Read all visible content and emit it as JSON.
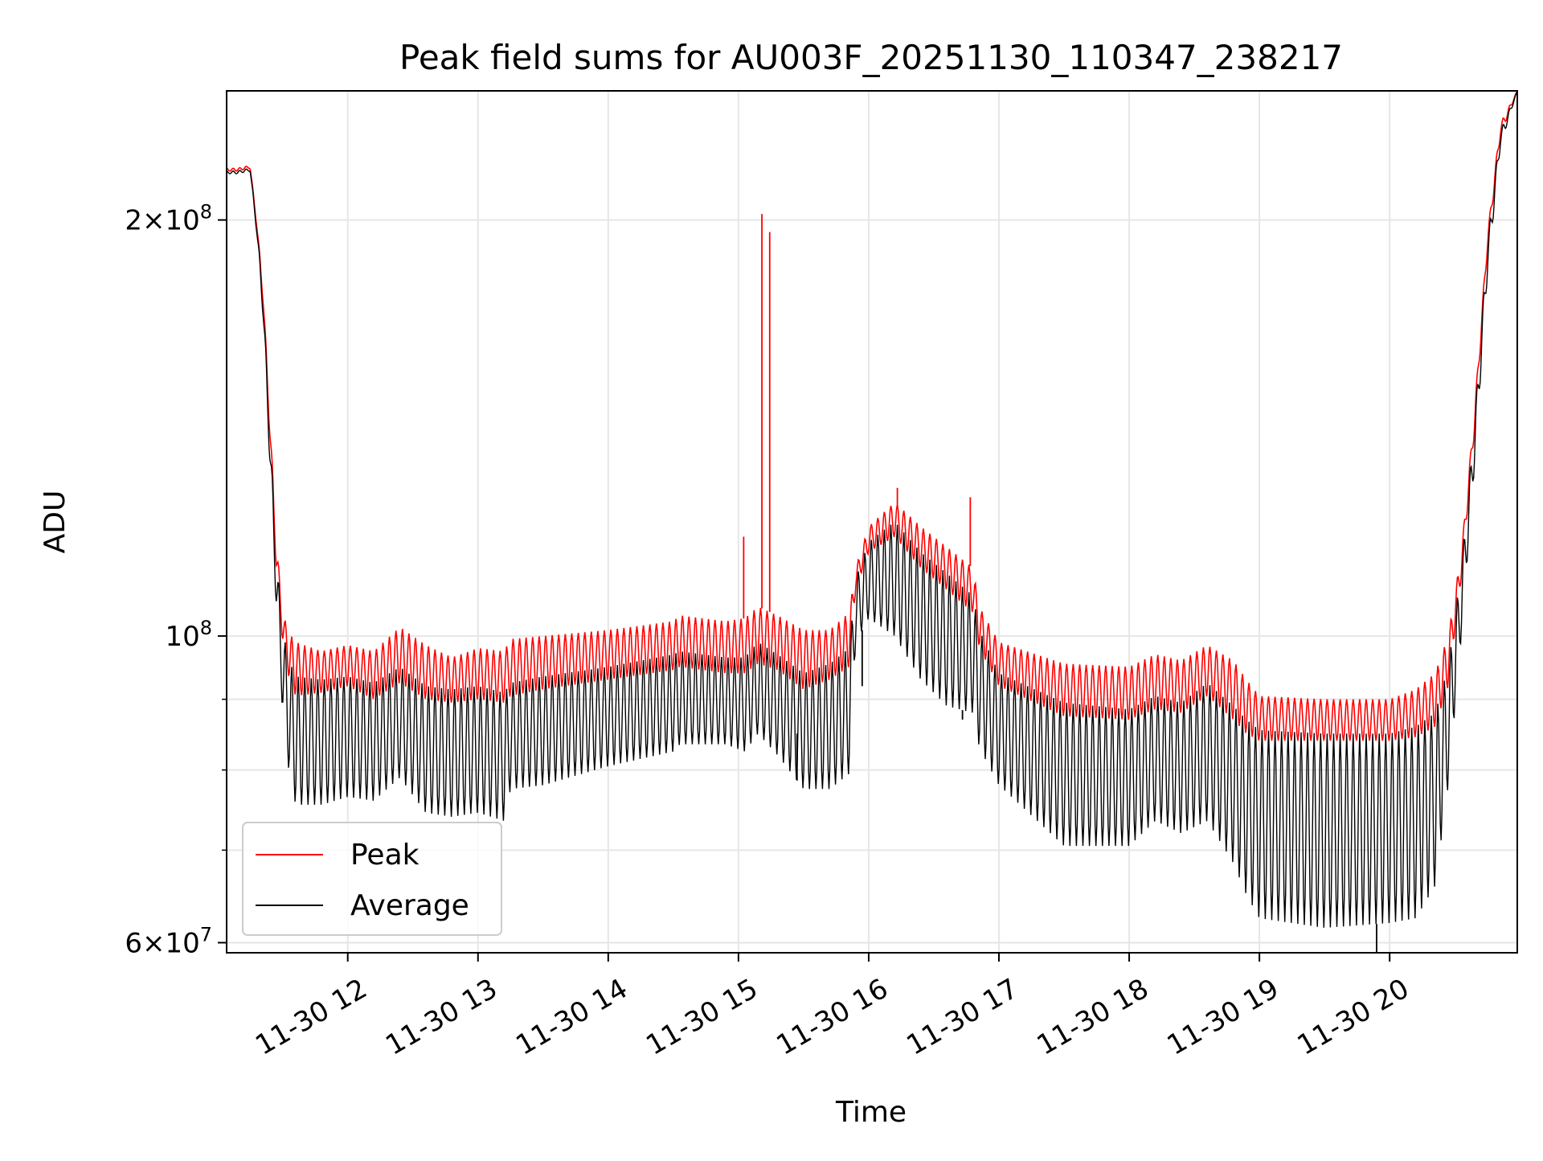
{
  "chart_data": {
    "type": "line",
    "title": "Peak field sums for AU003F_20251130_110347_238217",
    "xlabel": "Time",
    "ylabel": "ADU",
    "yscale": "log",
    "grid": true,
    "legend_position": "lower-left",
    "xlim": [
      11.07,
      20.98
    ],
    "ylim": [
      59000000,
      248000000
    ],
    "x_unit": "hours on 2025-11-30",
    "xticks": [
      {
        "value": 12,
        "label": "11-30 12"
      },
      {
        "value": 13,
        "label": "11-30 13"
      },
      {
        "value": 14,
        "label": "11-30 14"
      },
      {
        "value": 15,
        "label": "11-30 15"
      },
      {
        "value": 16,
        "label": "11-30 16"
      },
      {
        "value": 17,
        "label": "11-30 17"
      },
      {
        "value": 18,
        "label": "11-30 18"
      },
      {
        "value": 19,
        "label": "11-30 19"
      },
      {
        "value": 20,
        "label": "11-30 20"
      }
    ],
    "yticks_major": [
      {
        "value": 60000000,
        "base": "6×10",
        "exp": "7"
      },
      {
        "value": 100000000,
        "base": "10",
        "exp": "8"
      },
      {
        "value": 200000000,
        "base": "2×10",
        "exp": "8"
      }
    ],
    "yticks_minor": [
      70000000,
      80000000,
      90000000
    ],
    "series": [
      {
        "name": "Peak",
        "color": "#ff0000",
        "period_hours": 0.05,
        "envelope": {
          "x": [
            11.07,
            11.15,
            11.25,
            11.3,
            11.35,
            11.4,
            11.45,
            11.5,
            11.55,
            11.6,
            11.8,
            12.0,
            12.2,
            12.4,
            12.6,
            12.8,
            13.0,
            13.2,
            13.25,
            13.5,
            14.0,
            14.5,
            14.55,
            14.9,
            15.05,
            15.15,
            15.3,
            15.5,
            15.7,
            15.85,
            15.9,
            16.0,
            16.2,
            16.4,
            16.6,
            16.8,
            16.85,
            17.0,
            17.5,
            18.0,
            18.2,
            18.4,
            18.6,
            18.8,
            18.9,
            19.0,
            19.5,
            20.0,
            20.2,
            20.35,
            20.45,
            20.55,
            20.65,
            20.75,
            20.85,
            20.98
          ],
          "high": [
            218000000,
            218000000,
            219000000,
            200000000,
            178000000,
            145000000,
            118000000,
            104000000,
            100500000,
            99000000,
            97500000,
            98500000,
            97500000,
            101500000,
            98500000,
            96500000,
            98000000,
            97500000,
            99500000,
            100000000,
            101000000,
            102500000,
            103500000,
            102500000,
            103000000,
            105000000,
            103500000,
            101000000,
            101000000,
            104000000,
            112000000,
            120000000,
            125000000,
            120000000,
            116000000,
            112000000,
            105000000,
            99000000,
            95500000,
            95000000,
            97000000,
            96000000,
            98500000,
            96000000,
            93000000,
            90500000,
            90000000,
            90000000,
            91500000,
            94000000,
            100000000,
            115000000,
            145000000,
            195000000,
            235000000,
            248000000
          ],
          "low": [
            217000000,
            217000000,
            218000000,
            198000000,
            174000000,
            140000000,
            112000000,
            99000000,
            93000000,
            90500000,
            91000000,
            92000000,
            90000000,
            92500000,
            90000000,
            89500000,
            90000000,
            89500000,
            90500000,
            91500000,
            93000000,
            94500000,
            95000000,
            94000000,
            94000000,
            95500000,
            94500000,
            91500000,
            93000000,
            95000000,
            108000000,
            115000000,
            118000000,
            112000000,
            108000000,
            104000000,
            98000000,
            92000000,
            87500000,
            87000000,
            88500000,
            88000000,
            90500000,
            87000000,
            85000000,
            84000000,
            84000000,
            84000000,
            84500000,
            86000000,
            92000000,
            110000000,
            140000000,
            190000000,
            230000000,
            248000000
          ]
        },
        "spikes": [
          {
            "x": 15.04,
            "y": 118000000
          },
          {
            "x": 15.18,
            "y": 202000000
          },
          {
            "x": 15.24,
            "y": 196000000
          },
          {
            "x": 16.22,
            "y": 128000000
          },
          {
            "x": 16.78,
            "y": 126000000
          }
        ]
      },
      {
        "name": "Average",
        "color": "#000000",
        "period_hours": 0.05,
        "envelope": {
          "x": [
            11.07,
            11.15,
            11.25,
            11.3,
            11.35,
            11.4,
            11.45,
            11.5,
            11.55,
            11.6,
            11.8,
            12.0,
            12.2,
            12.4,
            12.6,
            12.8,
            13.0,
            13.2,
            13.25,
            13.5,
            14.0,
            14.5,
            14.55,
            14.9,
            15.05,
            15.15,
            15.3,
            15.5,
            15.7,
            15.85,
            15.9,
            16.0,
            16.2,
            16.4,
            16.6,
            16.8,
            16.85,
            17.0,
            17.5,
            18.0,
            18.2,
            18.4,
            18.6,
            18.8,
            18.9,
            19.0,
            19.5,
            20.0,
            20.2,
            20.35,
            20.45,
            20.55,
            20.65,
            20.75,
            20.85,
            20.98
          ],
          "high": [
            217000000,
            217000000,
            218000000,
            199000000,
            176000000,
            142000000,
            115000000,
            101000000,
            96000000,
            93500000,
            93000000,
            93500000,
            92500000,
            95000000,
            92000000,
            91500000,
            92000000,
            91000000,
            92500000,
            93500000,
            95000000,
            97000000,
            97500000,
            96500000,
            96500000,
            99000000,
            97000000,
            94000000,
            95500000,
            98000000,
            110000000,
            117000000,
            121000000,
            115000000,
            111000000,
            107000000,
            101000000,
            94000000,
            89500000,
            88500000,
            90500000,
            89500000,
            92500000,
            89000000,
            87000000,
            85500000,
            85000000,
            85000000,
            86000000,
            88000000,
            95000000,
            112000000,
            142000000,
            192000000,
            232000000,
            248000000
          ],
          "low": [
            216000000,
            216000000,
            217000000,
            196000000,
            170000000,
            134000000,
            105000000,
            88000000,
            79500000,
            75500000,
            75500000,
            76500000,
            76000000,
            79000000,
            74500000,
            74000000,
            74500000,
            73500000,
            77500000,
            78000000,
            80500000,
            82500000,
            83500000,
            83500000,
            82500000,
            85000000,
            82000000,
            77500000,
            77500000,
            79500000,
            99000000,
            103000000,
            100000000,
            93000000,
            89000000,
            88000000,
            83000000,
            78000000,
            70500000,
            70500000,
            73500000,
            72000000,
            73500000,
            68500000,
            65000000,
            62500000,
            61500000,
            62000000,
            62500000,
            66000000,
            78000000,
            100000000,
            132000000,
            182000000,
            226000000,
            248000000
          ]
        },
        "spikes": [
          {
            "x": 15.45,
            "y": 85000000
          },
          {
            "x": 15.95,
            "y": 92000000
          },
          {
            "x": 16.72,
            "y": 87000000
          },
          {
            "x": 19.9,
            "y": 59000000
          }
        ]
      }
    ]
  }
}
